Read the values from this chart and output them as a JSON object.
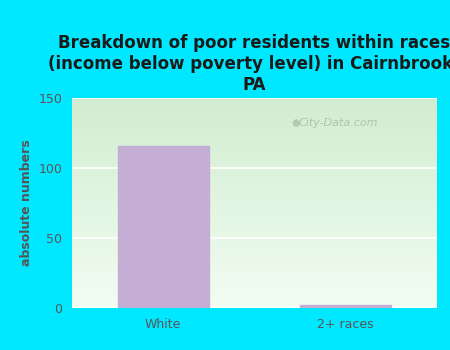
{
  "categories": [
    "White",
    "2+ races"
  ],
  "values": [
    116,
    2
  ],
  "bar_color": "#c5aed4",
  "bar_edge_color": "#c5aed4",
  "title": "Breakdown of poor residents within races\n(income below poverty level) in Cairnbrook,\nPA",
  "ylabel": "absolute numbers",
  "ylim": [
    0,
    150
  ],
  "yticks": [
    0,
    50,
    100,
    150
  ],
  "title_fontsize": 12,
  "label_fontsize": 9,
  "tick_fontsize": 9,
  "title_color": "#1a1a1a",
  "axis_color": "#555555",
  "background_outer": "#00e8ff",
  "bg_top_left": "#d4ecd4",
  "bg_bottom_right": "#f0f8f0",
  "bg_top_right": "#e8f4e8",
  "grid_color": "#ffffff",
  "watermark_text": "City-Data.com",
  "watermark_color": "#a8bca8"
}
